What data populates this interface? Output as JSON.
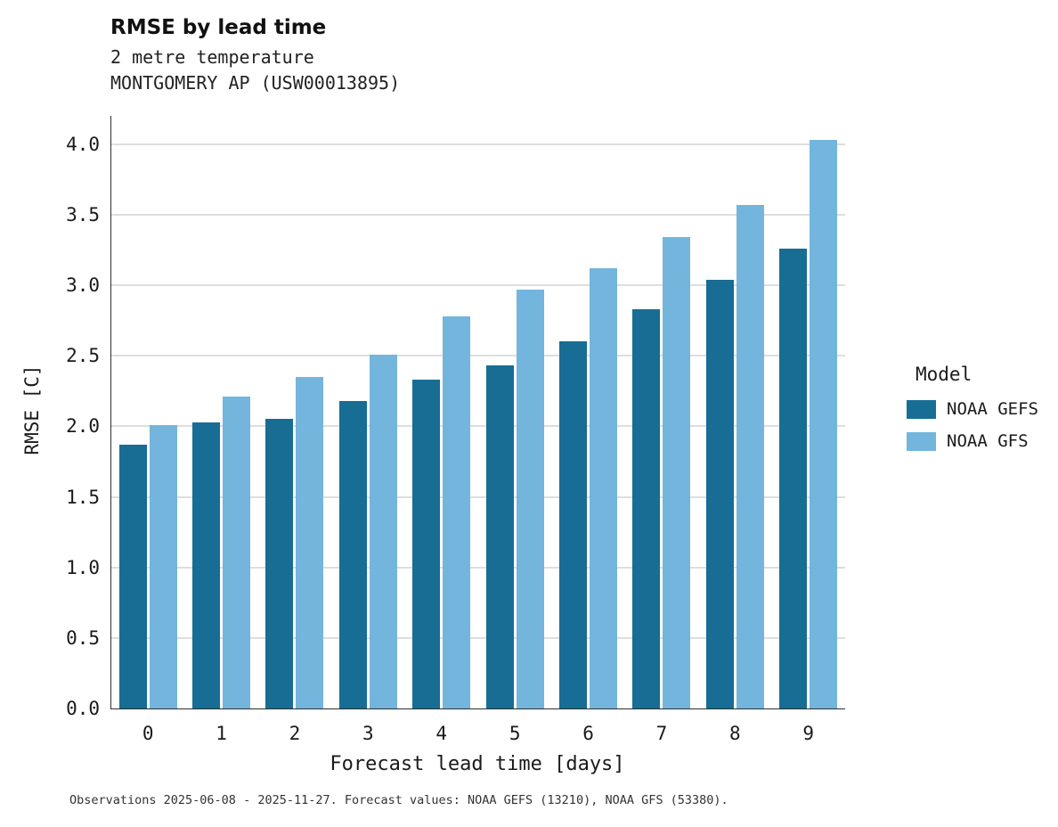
{
  "title": "RMSE by lead time",
  "subtitle_line1": "2 metre temperature",
  "subtitle_line2": "MONTGOMERY AP (USW00013895)",
  "footer": "Observations 2025-06-08 - 2025-11-27. Forecast values: NOAA GEFS (13210), NOAA GFS (53380).",
  "legend": {
    "title": "Model",
    "entries": [
      {
        "label": "NOAA GEFS",
        "color": "#176d94"
      },
      {
        "label": "NOAA GFS",
        "color": "#73b5dc"
      }
    ]
  },
  "chart_data": {
    "type": "bar",
    "title": "RMSE by lead time",
    "subtitle": "2 metre temperature — MONTGOMERY AP (USW00013895)",
    "xlabel": "Forecast lead time [days]",
    "ylabel": "RMSE [C]",
    "categories": [
      "0",
      "1",
      "2",
      "3",
      "4",
      "5",
      "6",
      "7",
      "8",
      "9"
    ],
    "series": [
      {
        "name": "NOAA GEFS",
        "color": "#176d94",
        "values": [
          1.87,
          2.03,
          2.05,
          2.18,
          2.33,
          2.43,
          2.6,
          2.83,
          3.04,
          3.26
        ]
      },
      {
        "name": "NOAA GFS",
        "color": "#73b5dc",
        "values": [
          2.01,
          2.21,
          2.35,
          2.51,
          2.78,
          2.97,
          3.12,
          3.34,
          3.57,
          4.03
        ]
      }
    ],
    "ylim": [
      0,
      4.2
    ],
    "yticks": [
      0.0,
      0.5,
      1.0,
      1.5,
      2.0,
      2.5,
      3.0,
      3.5,
      4.0
    ],
    "grid": true,
    "legend_position": "right"
  }
}
